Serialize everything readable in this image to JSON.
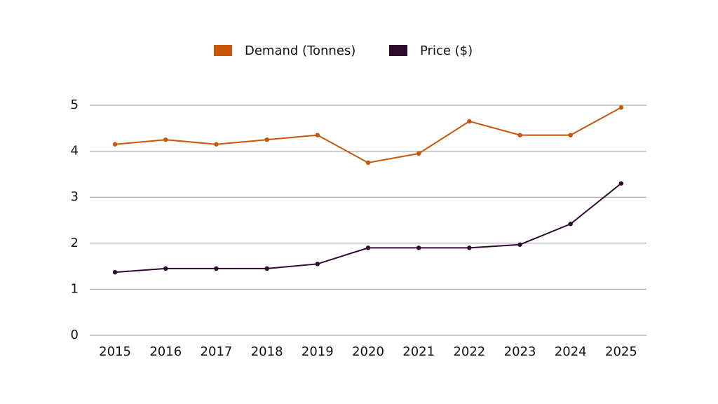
{
  "chart_data": {
    "type": "line",
    "categories": [
      "2015",
      "2016",
      "2017",
      "2018",
      "2019",
      "2020",
      "2021",
      "2022",
      "2023",
      "2024",
      "2025"
    ],
    "series": [
      {
        "name": "Demand (Tonnes)",
        "color": "#c8550a",
        "values": [
          4.15,
          4.25,
          4.15,
          4.25,
          4.35,
          3.75,
          3.95,
          4.65,
          4.35,
          4.35,
          4.95
        ]
      },
      {
        "name": "Price ($)",
        "color": "#2e0a2e",
        "values": [
          1.37,
          1.45,
          1.45,
          1.45,
          1.55,
          1.9,
          1.9,
          1.9,
          1.97,
          2.42,
          3.3
        ]
      }
    ],
    "ylim": [
      0,
      5
    ],
    "yticks": [
      0,
      1,
      2,
      3,
      4,
      5
    ],
    "grid": true,
    "legend": "top"
  }
}
